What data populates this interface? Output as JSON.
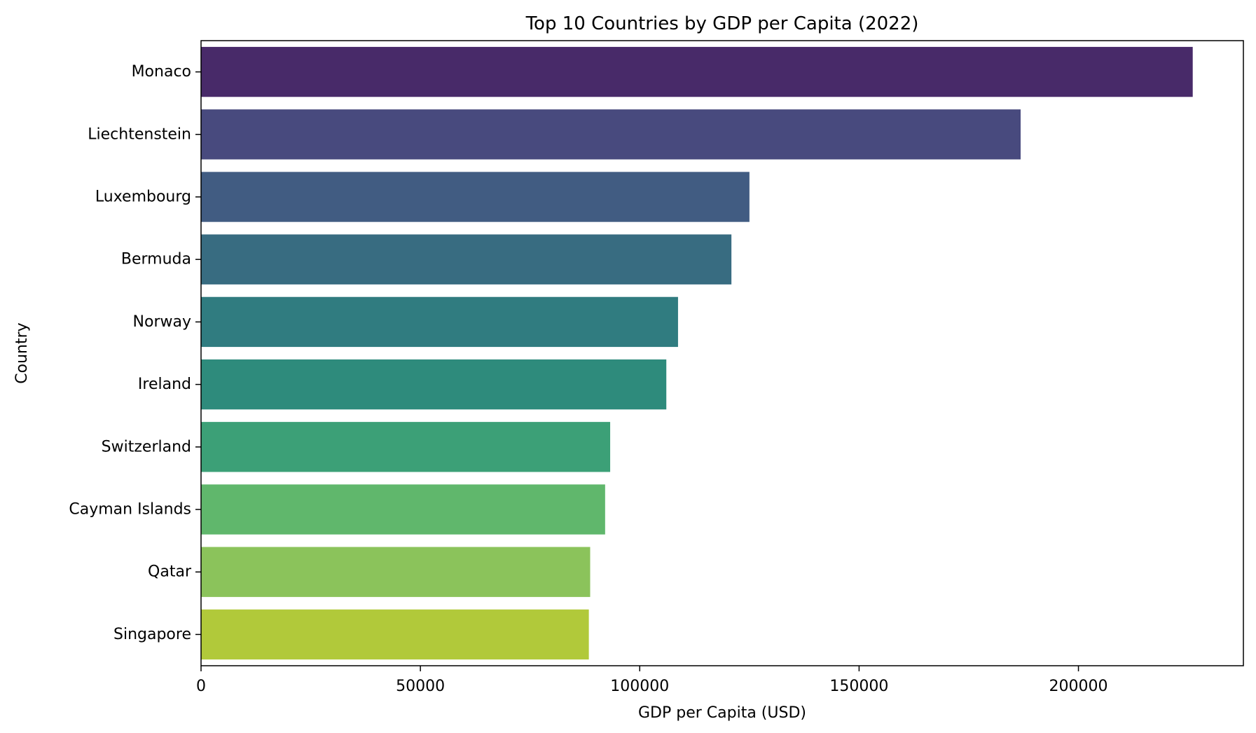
{
  "chart_data": {
    "type": "bar",
    "orientation": "horizontal",
    "title": "Top 10 Countries by GDP per Capita (2022)",
    "xlabel": "GDP per Capita (USD)",
    "ylabel": "Country",
    "xlim": [
      0,
      237600
    ],
    "xticks": [
      0,
      50000,
      100000,
      150000,
      200000
    ],
    "grid": false,
    "categories": [
      "Monaco",
      "Liechtenstein",
      "Luxembourg",
      "Bermuda",
      "Norway",
      "Ireland",
      "Switzerland",
      "Cayman Islands",
      "Qatar",
      "Singapore"
    ],
    "values": [
      226052,
      186821,
      125006,
      120898,
      108729,
      106060,
      93260,
      92109,
      88700,
      88400
    ],
    "colors": [
      "#482A69",
      "#484A7E",
      "#415C82",
      "#386C81",
      "#307C80",
      "#2E8B7C",
      "#3CA077",
      "#60B76C",
      "#8BC35B",
      "#B1C93A"
    ]
  }
}
